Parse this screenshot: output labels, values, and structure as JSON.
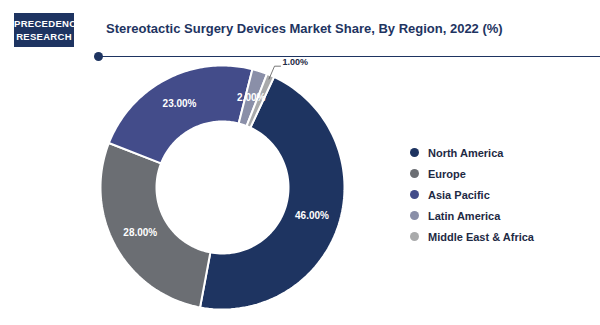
{
  "chart_data": {
    "type": "donut",
    "title": "Stereotactic Surgery Devices Market Share, By Region, 2022 (%)",
    "logo_text": [
      "PRECEDENCE",
      "RESEARCH"
    ],
    "categories": [
      "North America",
      "Europe",
      "Asia Pacific",
      "Latin America",
      "Middle East & Africa"
    ],
    "values": [
      46,
      28,
      23,
      2,
      1
    ],
    "value_labels": [
      "46.00%",
      "28.00%",
      "23.00%",
      "2.00%",
      "1.00%"
    ],
    "colors": [
      "#1e3461",
      "#6b6e73",
      "#434c8a",
      "#8a8fa8",
      "#a9aaab"
    ],
    "data_labels": true,
    "legend": "right"
  }
}
